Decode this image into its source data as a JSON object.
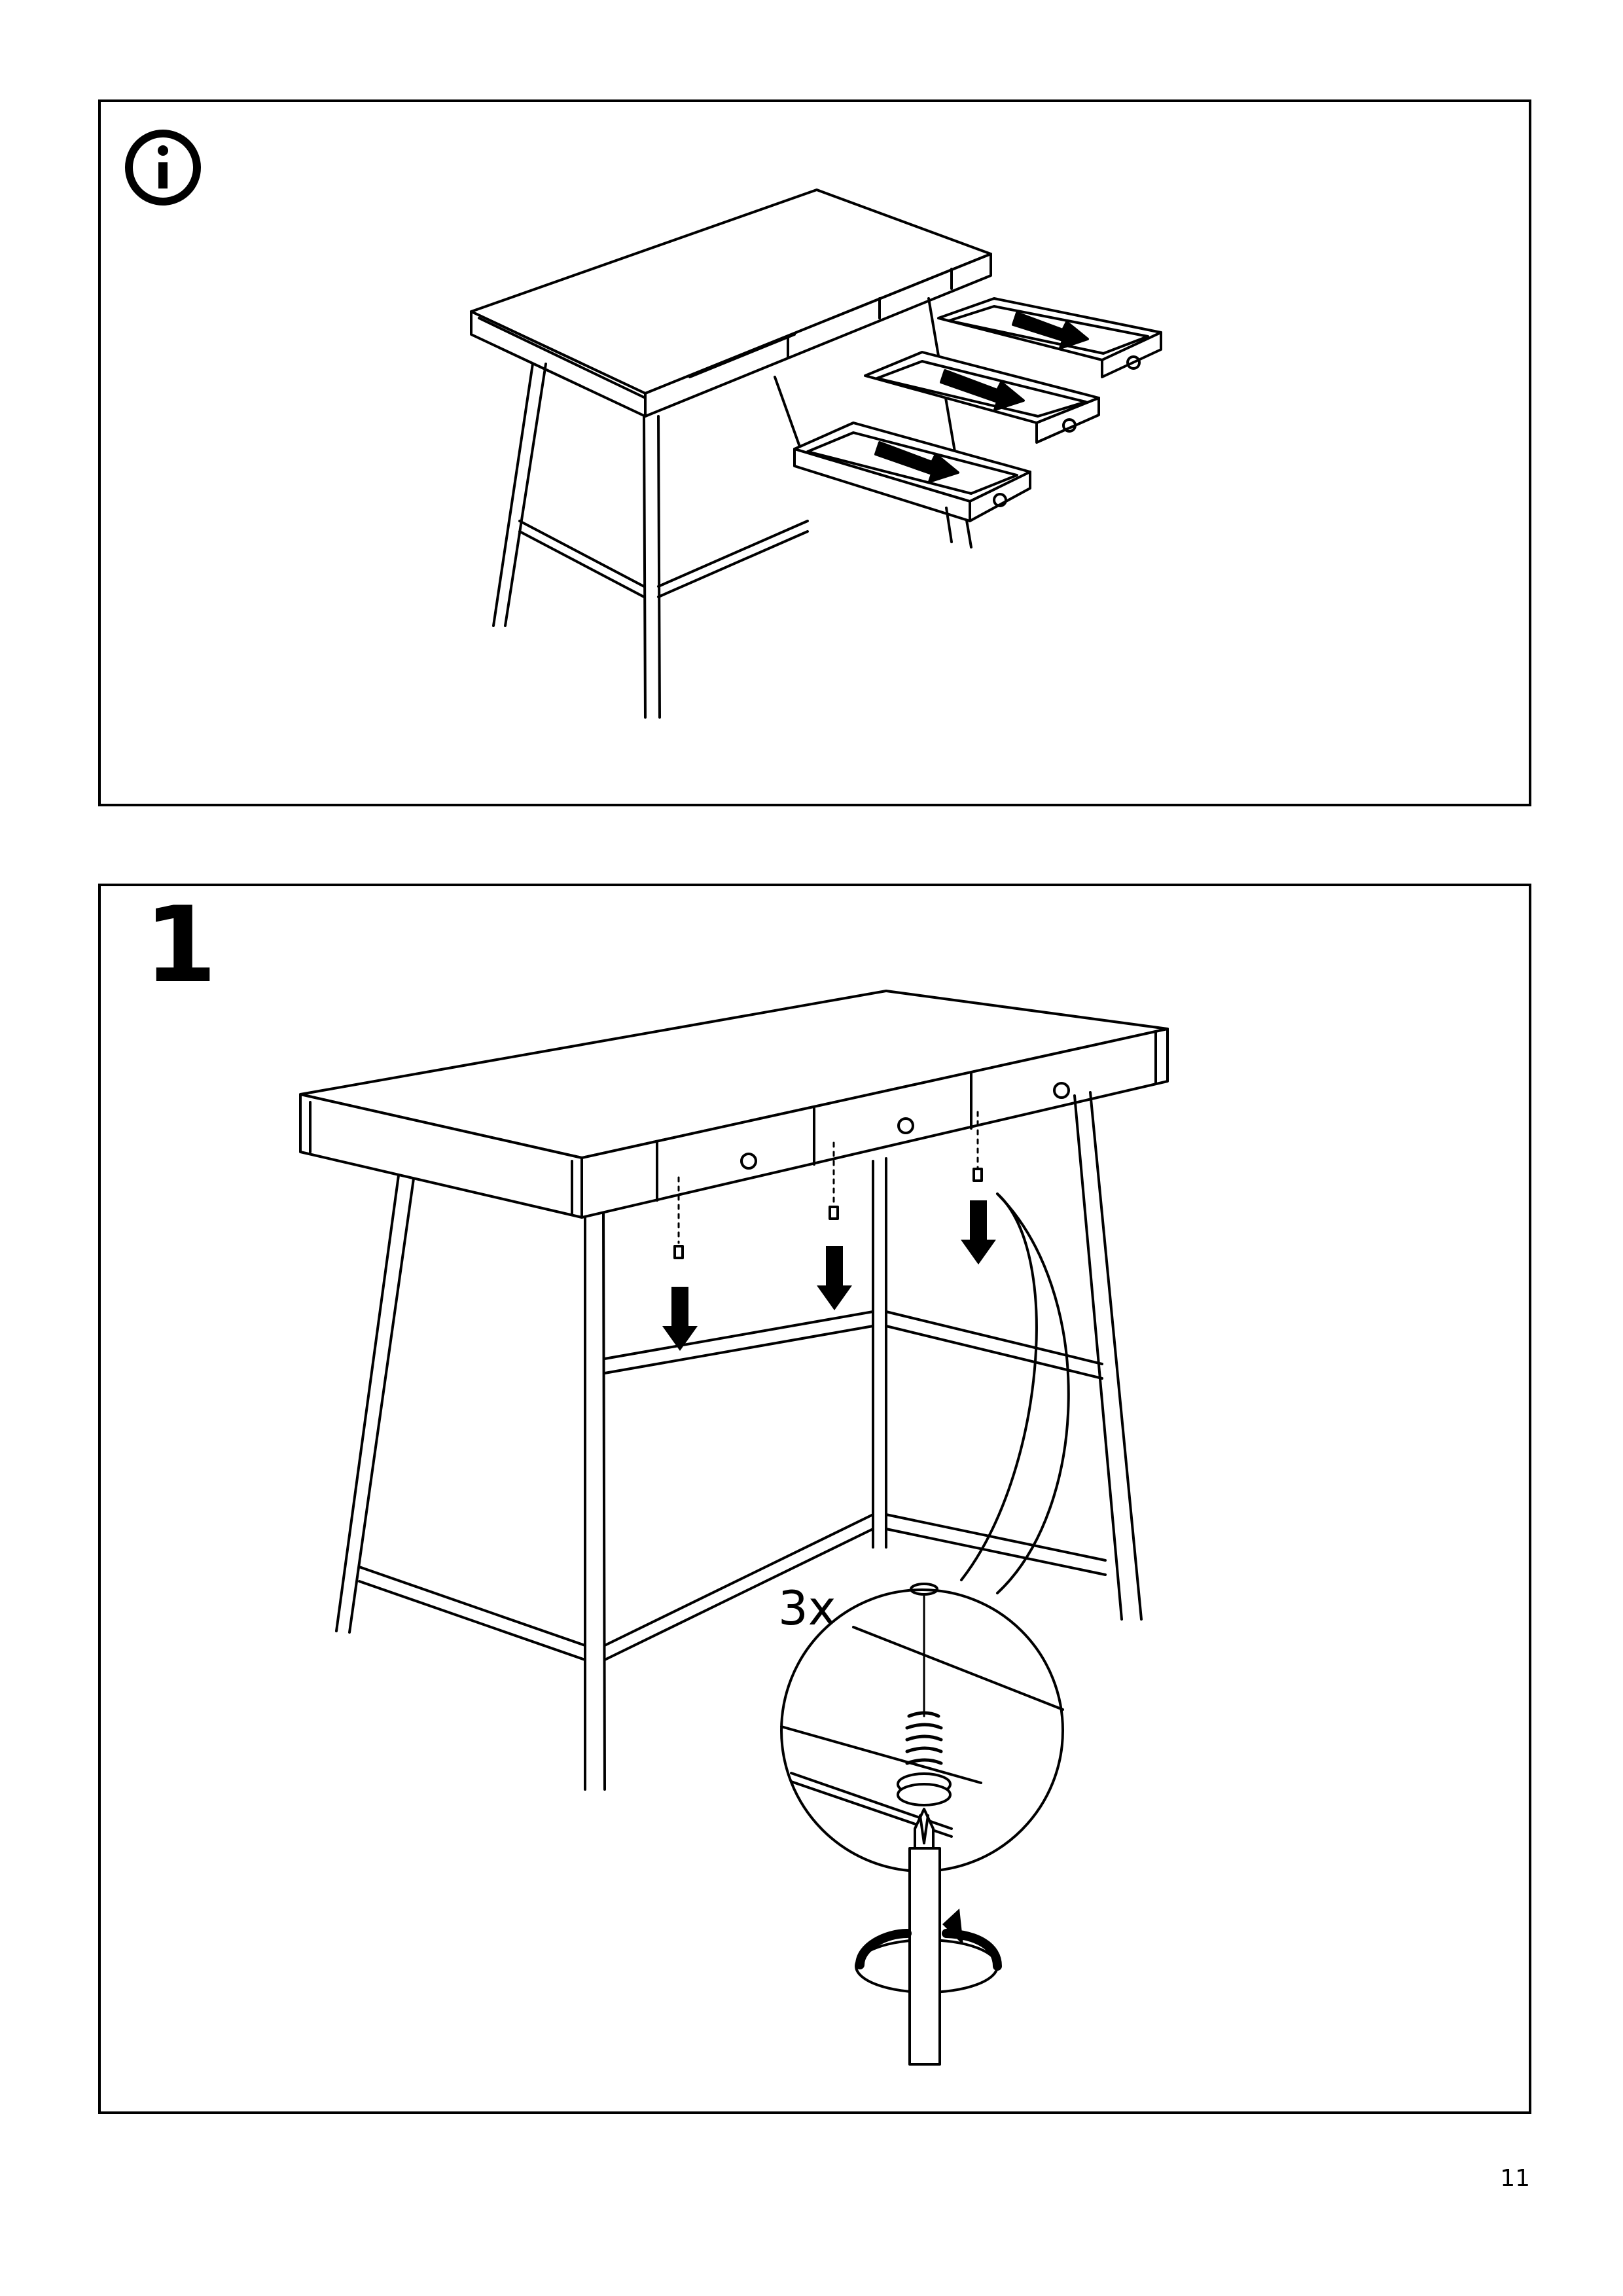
{
  "panels": {
    "info": {
      "icon": "info-icon"
    },
    "step1": {
      "step_number": "1",
      "quantity_label": "3x",
      "icons": [
        "screw-icon",
        "screwdriver-icon",
        "rotate-clockwise-icon",
        "arrow-down-icon"
      ]
    }
  },
  "page": {
    "number": "11"
  }
}
